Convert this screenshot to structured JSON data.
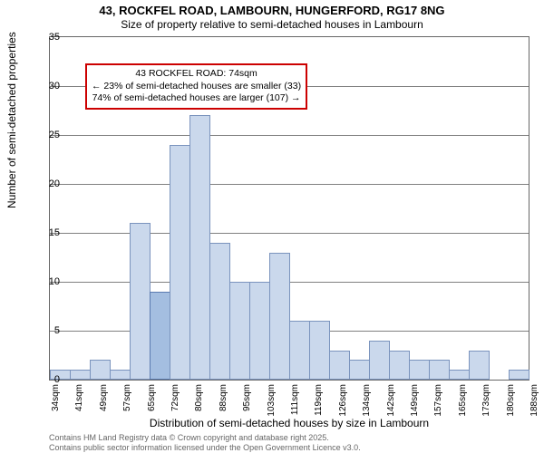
{
  "title_main": "43, ROCKFEL ROAD, LAMBOURN, HUNGERFORD, RG17 8NG",
  "title_sub": "Size of property relative to semi-detached houses in Lambourn",
  "ylabel": "Number of semi-detached properties",
  "xlabel": "Distribution of semi-detached houses by size in Lambourn",
  "footer_line1": "Contains HM Land Registry data © Crown copyright and database right 2025.",
  "footer_line2": "Contains public sector information licensed under the Open Government Licence v3.0.",
  "chart": {
    "type": "histogram",
    "background_color": "#ffffff",
    "grid_color": "#808080",
    "border_color": "#666666",
    "bar_fill": "#cad8ec",
    "bar_stroke": "#7a93bd",
    "highlight_fill": "#a4bee0",
    "highlight_stroke": "#5b7bb0",
    "annotation_border": "#cc0000",
    "ylim": [
      0,
      35
    ],
    "yticks": [
      0,
      5,
      10,
      15,
      20,
      25,
      30,
      35
    ],
    "xticks": [
      "34sqm",
      "41sqm",
      "49sqm",
      "57sqm",
      "65sqm",
      "72sqm",
      "80sqm",
      "88sqm",
      "95sqm",
      "103sqm",
      "111sqm",
      "119sqm",
      "126sqm",
      "134sqm",
      "142sqm",
      "149sqm",
      "157sqm",
      "165sqm",
      "173sqm",
      "180sqm",
      "188sqm"
    ],
    "highlight_index": 5,
    "values": [
      1,
      1,
      2,
      1,
      16,
      9,
      24,
      27,
      14,
      10,
      10,
      13,
      6,
      6,
      3,
      2,
      4,
      3,
      2,
      2,
      1,
      3,
      0,
      1
    ],
    "title_fontsize": 13,
    "label_fontsize": 12,
    "tick_fontsize": 11,
    "xtick_fontsize": 10,
    "annotation_fontsize": 10.5,
    "footer_fontsize": 9
  },
  "annotation": {
    "line1": "43 ROCKFEL ROAD: 74sqm",
    "line2": "← 23% of semi-detached houses are smaller (33)",
    "line3": "74% of semi-detached houses are larger (107) →"
  }
}
